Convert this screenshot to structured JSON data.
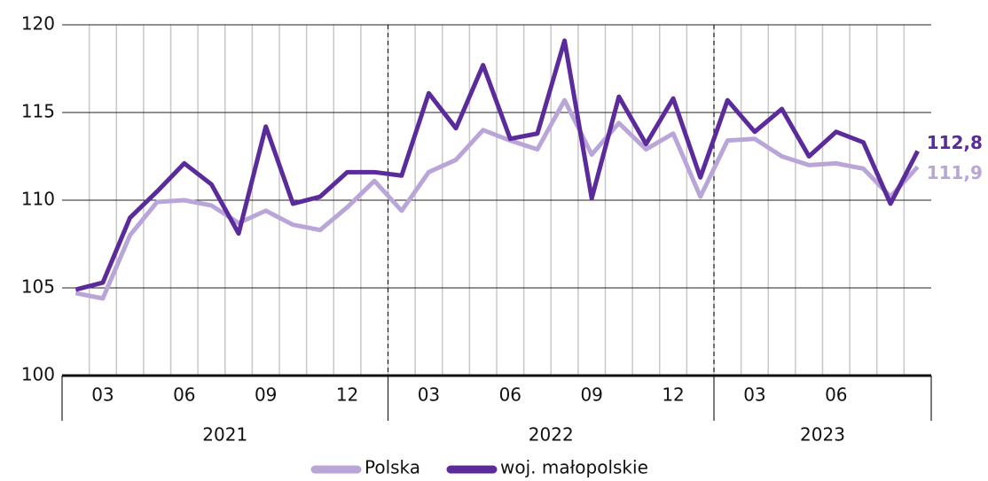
{
  "chart_data": {
    "type": "line",
    "categories": [
      null,
      "03",
      null,
      null,
      "06",
      null,
      null,
      "09",
      null,
      null,
      "12",
      null,
      null,
      "03",
      null,
      null,
      "06",
      null,
      null,
      "09",
      null,
      null,
      "12",
      null,
      null,
      "03",
      null,
      null,
      "06",
      null,
      null,
      null
    ],
    "x_groups": [
      {
        "label": "2021",
        "count": 12
      },
      {
        "label": "2022",
        "count": 12
      },
      {
        "label": "2023",
        "count": 8
      }
    ],
    "series": [
      {
        "name": "Polska",
        "color": "#b9a5d8",
        "values": [
          104.7,
          104.4,
          108.0,
          109.9,
          110.0,
          109.7,
          108.7,
          109.4,
          108.6,
          108.3,
          109.6,
          111.1,
          109.4,
          111.6,
          112.3,
          114.0,
          113.4,
          112.9,
          115.7,
          112.6,
          114.4,
          112.9,
          113.8,
          110.2,
          113.4,
          113.5,
          112.5,
          112.0,
          112.1,
          111.8,
          110.2,
          111.9
        ],
        "value_labels": [
          null,
          null,
          null,
          null,
          null,
          null,
          null,
          null,
          null,
          null,
          null,
          null,
          null,
          null,
          null,
          null,
          null,
          null,
          null,
          null,
          null,
          null,
          null,
          null,
          null,
          null,
          null,
          null,
          null,
          null,
          null,
          "111,9"
        ]
      },
      {
        "name": "woj. małopolskie",
        "color": "#5b2a9b",
        "values": [
          104.9,
          105.3,
          109.0,
          110.5,
          112.1,
          110.9,
          108.1,
          114.2,
          109.8,
          110.2,
          111.6,
          111.6,
          111.4,
          116.1,
          114.1,
          117.7,
          113.5,
          113.8,
          119.1,
          110.1,
          115.9,
          113.2,
          115.8,
          111.3,
          115.7,
          113.9,
          115.2,
          112.5,
          113.9,
          113.3,
          109.8,
          112.8
        ],
        "value_labels": [
          null,
          null,
          null,
          null,
          null,
          null,
          null,
          null,
          null,
          null,
          null,
          null,
          null,
          null,
          null,
          null,
          null,
          null,
          null,
          null,
          null,
          null,
          null,
          null,
          null,
          null,
          null,
          null,
          null,
          null,
          null,
          "112,8"
        ]
      }
    ],
    "ylim": [
      100,
      120
    ],
    "yticks": [
      100,
      105,
      110,
      115,
      120
    ],
    "grid": true,
    "legend": "bottom"
  }
}
